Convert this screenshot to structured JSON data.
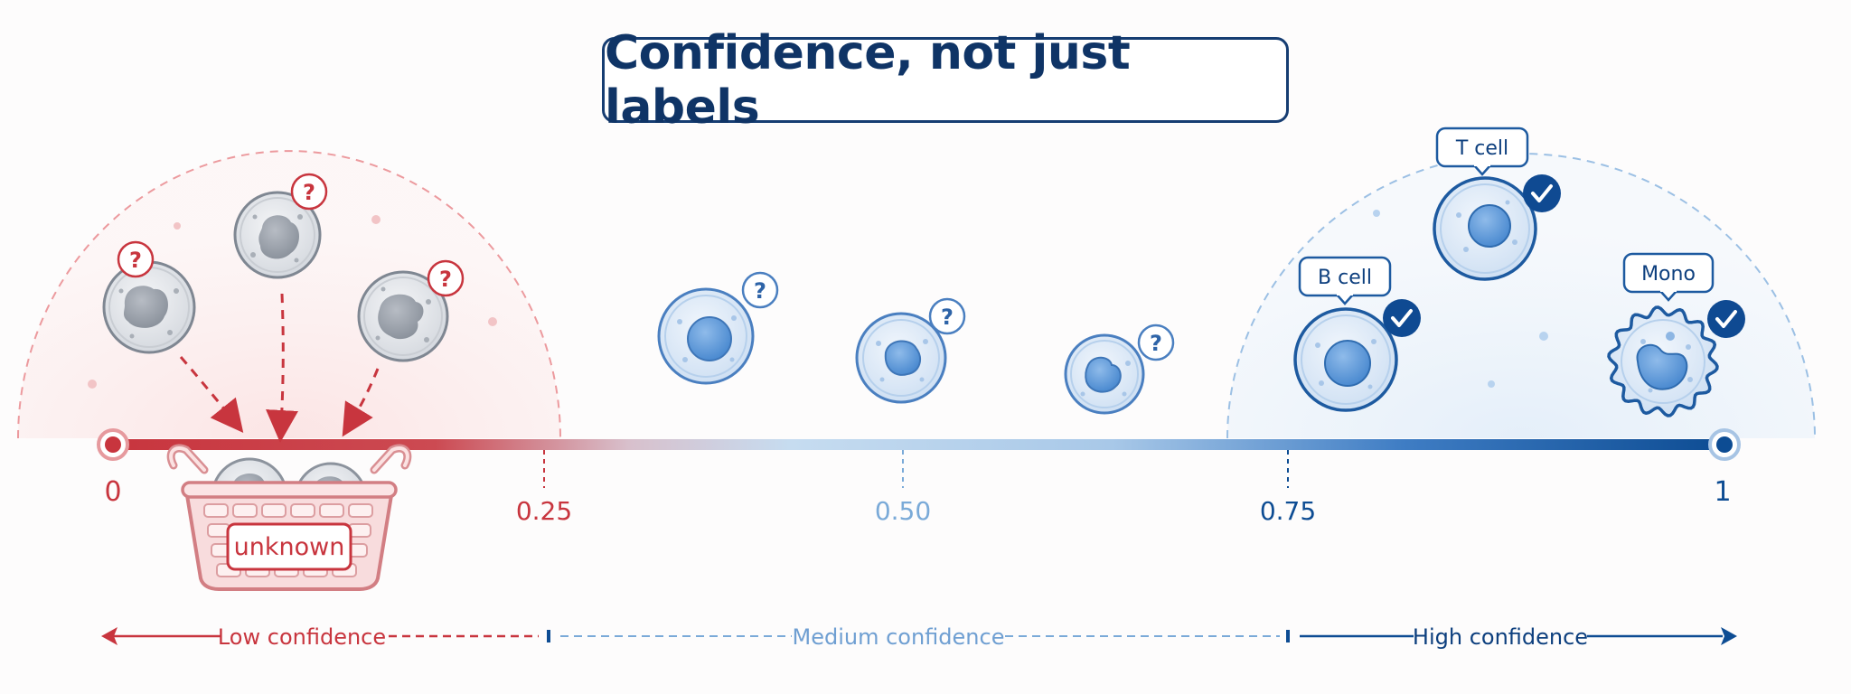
{
  "title": "Confidence, not just labels",
  "axis": {
    "ticks": [
      "0",
      "0.25",
      "0.50",
      "0.75",
      "1"
    ]
  },
  "basket": {
    "label": "unknown"
  },
  "question_mark": "?",
  "cell_labels": {
    "b_cell": "B cell",
    "t_cell": "T cell",
    "mono": "Mono"
  },
  "bands": {
    "low": "Low confidence",
    "medium": "Medium confidence",
    "high": "High confidence"
  },
  "colors": {
    "low": "#c8353e",
    "medium": "#7aaad8",
    "high": "#0d4c93",
    "title": "#0f3466"
  }
}
